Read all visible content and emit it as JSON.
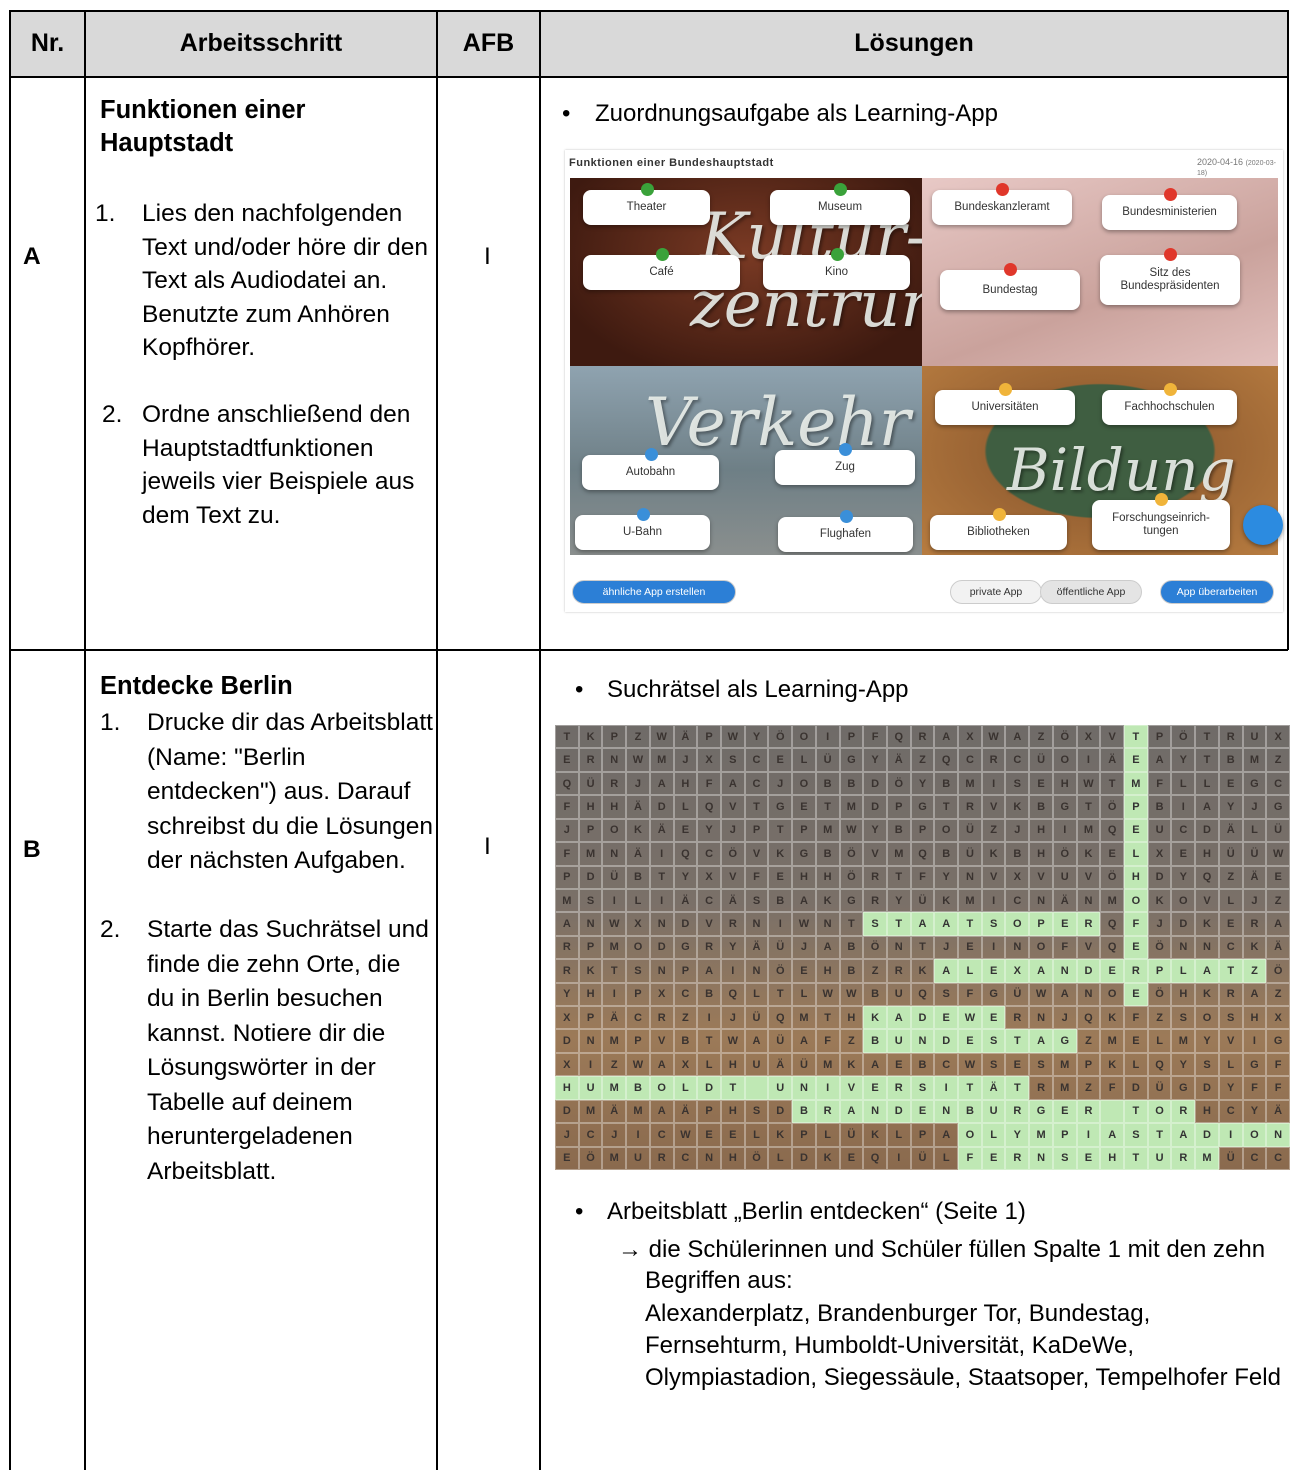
{
  "table": {
    "header": [
      "Nr.",
      "Arbeitsschritt",
      "AFB",
      "Lösungen"
    ],
    "rows": [
      {
        "nr": "A",
        "title": "Funktionen einer Hauptstadt",
        "steps": [
          {
            "number": "1.",
            "text": "Lies den nachfolgenden Text und/oder höre dir den Text als Audiodatei an. Benutzte zum Anhören Kopfhörer."
          },
          {
            "number": "2.",
            "text": "Ordne anschließend den Hauptstadtfunktionen jeweils vier Beispiele aus dem Text zu."
          }
        ],
        "afb": "I",
        "solutions": [
          "Zuordnungsaufgabe als Learning-App"
        ]
      },
      {
        "nr": "B",
        "title": "Entdecke Berlin",
        "steps": [
          {
            "number": "1.",
            "text": "Drucke dir das Arbeitsblatt (Name: \"Berlin entdecken\") aus. Darauf schreibst du die Lösungen der nächsten Aufgaben."
          },
          {
            "number": "2.",
            "text": "Starte das Suchrätsel und finde die zehn Orte, die du in Berlin besuchen kannst. Notiere dir die Lösungswörter in der Tabelle auf deinem heruntergeladenen Arbeitsblatt."
          }
        ],
        "afb": "I",
        "solutions": [
          "Suchrätsel als Learning-App",
          "Arbeitsblatt „Berlin entdecken“ (Seite 1)"
        ],
        "note": "→ die Schülerinnen und Schüler füllen Spalte 1 mit den zehn Begriffen aus:",
        "terms": "Alexanderplatz, Brandenburger Tor, Bundestag, Fernsehturm, Humboldt-Universität, KaDeWe, Olympiastadion, Siegessäule, Staatsoper, Tempelhofer Feld"
      }
    ]
  },
  "learning_app": {
    "title": "Funktionen einer Bundeshauptstadt",
    "date": "2020-04-16",
    "date_sub": "(2020-03-18)",
    "quadrants": [
      {
        "heading": [
          "Kultur-",
          "zentrum"
        ],
        "cards": [
          "Theater",
          "Museum",
          "Café",
          "Kino"
        ]
      },
      {
        "heading": [],
        "cards": [
          "Bundeskanzleramt",
          "Bundesministerien",
          "Bundestag",
          "Sitz des\nBundespräsidenten"
        ]
      },
      {
        "heading": [
          "Verkehr"
        ],
        "cards": [
          "Autobahn",
          "Zug",
          "U-Bahn",
          "Flughafen"
        ]
      },
      {
        "heading": [
          "Bildung"
        ],
        "cards": [
          "Universitäten",
          "Fachhochschulen",
          "Bibliotheken",
          "Forschungseinrich-\ntungen"
        ]
      }
    ],
    "buttons": [
      "ähnliche App erstellen",
      "private App",
      "öffentliche App",
      "App überarbeiten"
    ]
  },
  "word_search": {
    "rows": [
      "TKPZWÄPWYÖOIPFQRAXWAZÖXVTPÖTRUX",
      "ERNWMJXSCELÜGYÄZQCRCÜOIÄEAYTBMZ",
      "QÜRJAHFACJOBBDÖYBMISEHWTMFLLEGC",
      "FHHÄDLQVTGETMDPGTRVKBGTÖPBIAYJG",
      "JPOKÄEYJPTPMWYBPOÜZJHIMQEUCDÄLÜ",
      "FMNÄIQCÖVKGBÖVMQBÜKBHÖKELXEHÜÜW",
      "PDÜBTYXVFEHHÖRTFYNVXVUVÖHDYQZÄE",
      "MSILIÄCÄSBAKGRYÜKMICNÄNMOKOVLJZ",
      "ANWXNDVRNIWNTSTAATSOPERQFJDKERA",
      "RPMODGRYÄÜJABÖNTJEINOFVQEÖNNCKÄ",
      "RKTSNPAINÖEHBZRKALEXANDERPLATZÖ",
      "YHIPXCBQLTLWWBUQSFGÜWANOEÖHKRAZ",
      "XPÄCRZIJÜQMTHKADEWERNJQKFZSOSHX",
      "DNMPVBTWAÜAFZBUNDESTAGZMELMYVIG",
      "XIZWAXLHUÄÜMKAEBCWSESMPKLQYSLGF",
      "HUMBOLDT UNIVERSITÄTRMZFDÜGDYFF",
      "DMÄMAÄPHSDBRANDENBURGER TORHCYÄ",
      "JCJICWEELKPLÜKLPAOLYMPIASTADION",
      "EÖMURCNHÖLDKEQIÜLFERNSEHTURMÜCC"
    ]
  }
}
